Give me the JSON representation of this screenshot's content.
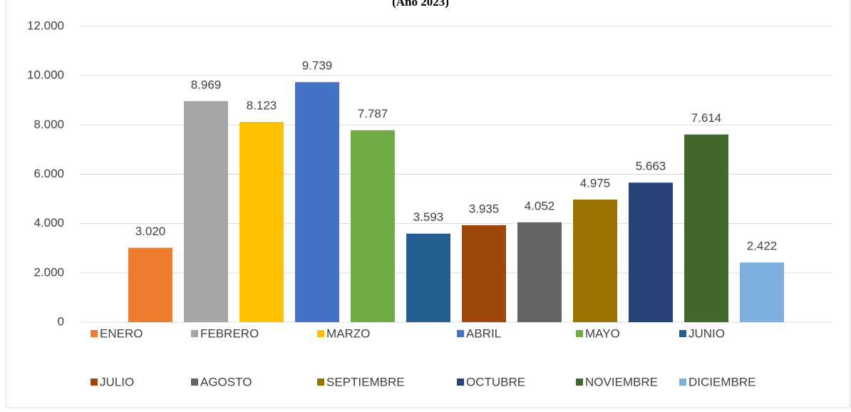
{
  "chart_data": {
    "type": "bar",
    "title": "(Año 2023)",
    "categories": [
      null
    ],
    "series": [
      {
        "name": "ENERO",
        "color": "#ED7D31",
        "values": [
          3020
        ],
        "value_labels": [
          "3.020"
        ]
      },
      {
        "name": "FEBRERO",
        "color": "#A5A5A5",
        "values": [
          8969
        ],
        "value_labels": [
          "8.969"
        ]
      },
      {
        "name": "MARZO",
        "color": "#FFC000",
        "values": [
          8123
        ],
        "value_labels": [
          "8.123"
        ]
      },
      {
        "name": "ABRIL",
        "color": "#4472C4",
        "values": [
          9739
        ],
        "value_labels": [
          "9.739"
        ]
      },
      {
        "name": "MAYO",
        "color": "#70AD47",
        "values": [
          7787
        ],
        "value_labels": [
          "7.787"
        ]
      },
      {
        "name": "JUNIO",
        "color": "#255E91",
        "values": [
          3593
        ],
        "value_labels": [
          "3.593"
        ]
      },
      {
        "name": "JULIO",
        "color": "#9E480E",
        "values": [
          3935
        ],
        "value_labels": [
          "3.935"
        ]
      },
      {
        "name": "AGOSTO",
        "color": "#636363",
        "values": [
          4052
        ],
        "value_labels": [
          "4.052"
        ]
      },
      {
        "name": "SEPTIEMBRE",
        "color": "#997300",
        "values": [
          4975
        ],
        "value_labels": [
          "4.975"
        ]
      },
      {
        "name": "OCTUBRE",
        "color": "#264478",
        "values": [
          5663
        ],
        "value_labels": [
          "5.663"
        ]
      },
      {
        "name": "NOVIEMBRE",
        "color": "#43682B",
        "values": [
          7614
        ],
        "value_labels": [
          "7.614"
        ]
      },
      {
        "name": "DICIEMBRE",
        "color": "#7CAFDD",
        "values": [
          2422
        ],
        "value_labels": [
          "2.422"
        ]
      }
    ],
    "ylim": [
      0,
      12000
    ],
    "yticks": [
      0,
      {
        "value": 2000,
        "label": "2.000"
      },
      {
        "value": 4000,
        "label": "4.000"
      },
      {
        "value": 6000,
        "label": "6.000"
      },
      {
        "value": 8000,
        "label": "8.000"
      },
      {
        "value": 10000,
        "label": "10.000"
      },
      {
        "value": 12000,
        "label": "12.000"
      }
    ],
    "grid": true,
    "legend": "bottom"
  }
}
